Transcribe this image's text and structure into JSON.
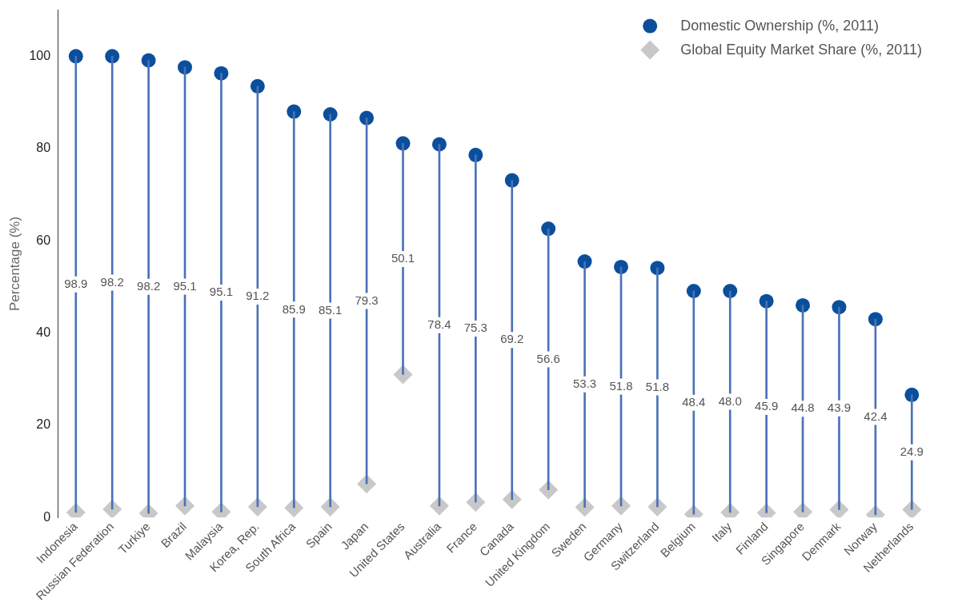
{
  "chart_data": {
    "type": "scatter",
    "ylabel": "Percentage (%)",
    "categories": [
      "Indonesia",
      "Russian Federation",
      "Turkiye",
      "Brazil",
      "Malaysia",
      "Korea, Rep.",
      "South Africa",
      "Spain",
      "Japan",
      "United States",
      "Australia",
      "France",
      "Canada",
      "United Kingdom",
      "Sweden",
      "Germany",
      "Switzerland",
      "Belgium",
      "Italy",
      "Finland",
      "Singapore",
      "Denmark",
      "Norway",
      "Netherlands"
    ],
    "series": [
      {
        "type": "bar",
        "color": "#4a72b8",
        "base": [
          1.1,
          1.8,
          0.9,
          2.5,
          1.2,
          2.3,
          2.1,
          2.3,
          7.3,
          31.0,
          2.5,
          3.3,
          3.9,
          6.0,
          2.2,
          2.5,
          2.3,
          0.7,
          1.1,
          1.0,
          1.2,
          1.7,
          0.6,
          1.7
        ],
        "values": [
          98.9,
          98.2,
          98.2,
          95.1,
          95.1,
          91.2,
          85.9,
          85.1,
          79.3,
          50.1,
          78.4,
          75.3,
          69.2,
          56.6,
          53.3,
          51.8,
          51.8,
          48.4,
          48.0,
          45.9,
          44.8,
          43.9,
          42.4,
          24.9
        ],
        "value_labels": [
          "98.9",
          "98.2",
          "98.2",
          "95.1",
          "95.1",
          "91.2",
          "85.9",
          "85.1",
          "79.3",
          "50.1",
          "78.4",
          "75.3",
          "69.2",
          "56.6",
          "53.3",
          "51.8",
          "51.8",
          "48.4",
          "48.0",
          "45.9",
          "44.8",
          "43.9",
          "42.4",
          "24.9"
        ]
      },
      {
        "name": "Domestic Ownership (%, 2011)",
        "color": "#0b4f9c",
        "marker": "circle",
        "values": [
          100.0,
          100.0,
          99.1,
          97.6,
          96.3,
          93.5,
          88.0,
          87.4,
          86.6,
          81.1,
          80.9,
          78.6,
          73.1,
          62.6,
          55.5,
          54.3,
          54.1,
          49.1,
          49.1,
          46.9,
          46.0,
          45.6,
          43.0,
          26.6
        ]
      },
      {
        "name": "Global Equity Market Share (%, 2011)",
        "color": "#c8c8c8",
        "marker": "diamond",
        "values": [
          1.1,
          1.8,
          0.9,
          2.5,
          1.2,
          2.3,
          2.1,
          2.3,
          7.3,
          31.0,
          2.5,
          3.3,
          3.9,
          6.0,
          2.2,
          2.5,
          2.3,
          0.7,
          1.1,
          1.0,
          1.2,
          1.7,
          0.6,
          1.7
        ]
      }
    ],
    "ylim": [
      0,
      110
    ],
    "yticks": [
      0,
      20,
      40,
      60,
      80,
      100
    ],
    "grid": false,
    "legend": "top right"
  }
}
